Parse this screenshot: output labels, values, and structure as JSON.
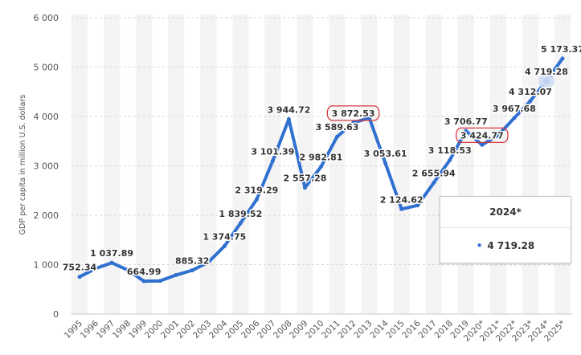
{
  "chart_data": {
    "type": "line",
    "title": "",
    "xlabel": "",
    "ylabel": "GDP per capita in million U.S. dollars",
    "ylim": [
      0,
      6000
    ],
    "yticks": [
      0,
      1000,
      2000,
      3000,
      4000,
      5000,
      6000
    ],
    "ytick_labels": [
      "0",
      "1 000",
      "2 000",
      "3 000",
      "4 000",
      "5 000",
      "6 000"
    ],
    "grid": true,
    "line_color": "#2f70d0",
    "highlight_color": "#d9363e",
    "categories": [
      "1995",
      "1996",
      "1997",
      "1998",
      "1999",
      "2000",
      "2001",
      "2002",
      "2003",
      "2004",
      "2005",
      "2006",
      "2007",
      "2008",
      "2009",
      "2010",
      "2011",
      "2012",
      "2013",
      "2014",
      "2015",
      "2016",
      "2017",
      "2018",
      "2019",
      "2020*",
      "2021*",
      "2022*",
      "2023*",
      "2024*",
      "2025*"
    ],
    "values": [
      752.34,
      920,
      1037.89,
      890,
      664.99,
      670,
      790,
      885.32,
      1050,
      1374.75,
      1839.52,
      2319.29,
      3101.39,
      3944.72,
      2557.28,
      2982.81,
      3589.63,
      3872.53,
      3970,
      3053.61,
      2124.62,
      2200,
      2655.94,
      3118.53,
      3706.77,
      3424.77,
      3620,
      3967.68,
      4312.07,
      4719.28,
      5173.37
    ],
    "data_labels": [
      "752.34",
      "",
      "1 037.89",
      "",
      "664.99",
      "",
      "",
      "885.32",
      "",
      "1 374.75",
      "1 839.52",
      "2 319.29",
      "3 101.39",
      "3 944.72",
      "2 557.28",
      "2 982.81",
      "3 589.63",
      "3 872.53",
      "",
      "3 053.61",
      "2 124.62",
      "",
      "2 655.94",
      "3 118.53",
      "3 706.77",
      "3 424.77",
      "",
      "3 967.68",
      "4 312.07",
      "4 719.28",
      "5 173.37"
    ],
    "circled_labels": [
      "3 872.53",
      "3 424.77"
    ]
  },
  "tooltip": {
    "title": "2024*",
    "bullet": "•",
    "value": "4 719.28"
  }
}
